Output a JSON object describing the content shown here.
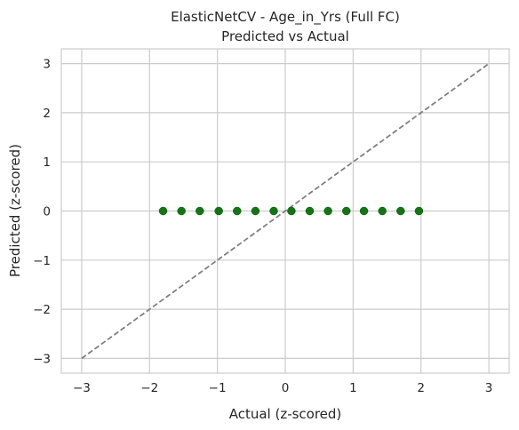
{
  "chart_data": {
    "type": "scatter",
    "title": "ElasticNetCV - Age_in_Yrs (Full FC)",
    "subtitle": "Predicted vs Actual",
    "xlabel": "Actual (z-scored)",
    "ylabel": "Predicted (z-scored)",
    "xlim": [
      -3.3,
      3.3
    ],
    "ylim": [
      -3.3,
      3.3
    ],
    "xticks": [
      -3,
      -2,
      -1,
      0,
      1,
      2,
      3
    ],
    "yticks": [
      -3,
      -2,
      -1,
      0,
      1,
      2,
      3
    ],
    "xtick_labels": [
      "−3",
      "−2",
      "−1",
      "0",
      "1",
      "2",
      "3"
    ],
    "ytick_labels": [
      "−3",
      "−2",
      "−1",
      "0",
      "1",
      "2",
      "3"
    ],
    "grid": true,
    "point_color": "#006400",
    "reference_line": {
      "style": "dashed",
      "color": "#808080",
      "x": [
        -3,
        3
      ],
      "y": [
        -3,
        3
      ]
    },
    "series": [
      {
        "x": [
          -1.8,
          -1.53,
          -1.26,
          -0.98,
          -0.71,
          -0.44,
          -0.17,
          0.09,
          0.36,
          0.63,
          0.9,
          1.16,
          1.43,
          1.7,
          1.97
        ],
        "y": [
          0,
          0,
          0,
          0,
          0,
          0,
          0,
          0,
          0,
          0,
          0,
          0,
          0,
          0,
          0
        ]
      }
    ]
  }
}
